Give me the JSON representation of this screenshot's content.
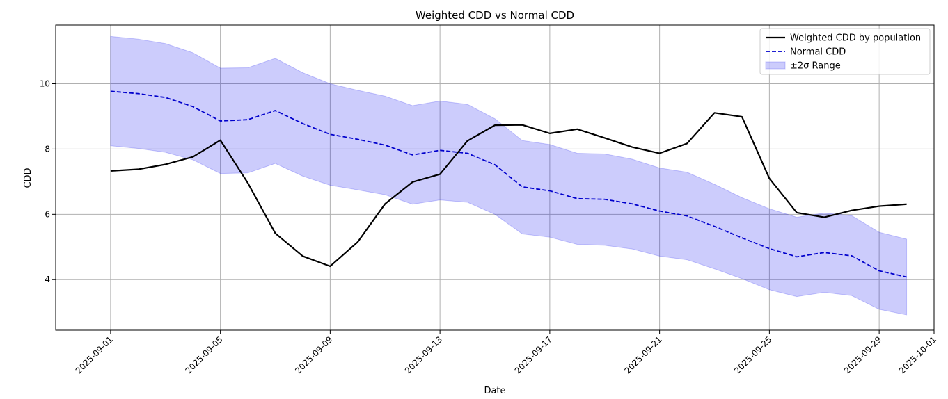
{
  "chart_data": {
    "type": "line",
    "title": "Weighted CDD vs Normal CDD",
    "xlabel": "Date",
    "ylabel": "CDD",
    "x": [
      "2025-09-01",
      "2025-09-02",
      "2025-09-03",
      "2025-09-04",
      "2025-09-05",
      "2025-09-06",
      "2025-09-07",
      "2025-09-08",
      "2025-09-09",
      "2025-09-10",
      "2025-09-11",
      "2025-09-12",
      "2025-09-13",
      "2025-09-14",
      "2025-09-15",
      "2025-09-16",
      "2025-09-17",
      "2025-09-18",
      "2025-09-19",
      "2025-09-20",
      "2025-09-21",
      "2025-09-22",
      "2025-09-23",
      "2025-09-24",
      "2025-09-25",
      "2025-09-26",
      "2025-09-27",
      "2025-09-28",
      "2025-09-29",
      "2025-09-30"
    ],
    "x_ticks": [
      "2025-09-01",
      "2025-09-05",
      "2025-09-09",
      "2025-09-13",
      "2025-09-17",
      "2025-09-21",
      "2025-09-25",
      "2025-09-29",
      "2025-10-01"
    ],
    "xlim": [
      "2025-08-30",
      "2025-10-01"
    ],
    "y_ticks": [
      4,
      6,
      8,
      10
    ],
    "ylim": [
      2.45,
      11.8
    ],
    "grid": true,
    "legend_position": "top-right",
    "series": [
      {
        "name": "Weighted CDD by population",
        "style": "solid",
        "color": "#000000",
        "values": [
          7.33,
          7.38,
          7.53,
          7.76,
          8.27,
          6.96,
          5.42,
          4.72,
          4.41,
          5.15,
          6.32,
          6.99,
          7.23,
          8.25,
          8.73,
          8.74,
          8.48,
          8.61,
          8.34,
          8.06,
          7.87,
          8.17,
          9.11,
          8.99,
          7.1,
          6.05,
          5.91,
          6.12,
          6.25,
          6.31
        ]
      },
      {
        "name": "Normal CDD",
        "style": "dashed",
        "color": "#0000cc",
        "values": [
          9.77,
          9.7,
          9.58,
          9.3,
          8.86,
          8.9,
          9.18,
          8.78,
          8.45,
          8.3,
          8.12,
          7.82,
          7.96,
          7.87,
          7.52,
          6.84,
          6.72,
          6.48,
          6.46,
          6.32,
          6.1,
          5.95,
          5.63,
          5.28,
          4.95,
          4.7,
          4.83,
          4.73,
          4.27,
          4.08
        ]
      }
    ],
    "band": {
      "name": "±2σ Range",
      "color": "#0000ee",
      "opacity": 0.2,
      "upper": [
        11.45,
        11.37,
        11.23,
        10.95,
        10.48,
        10.49,
        10.78,
        10.34,
        10.0,
        9.8,
        9.62,
        9.33,
        9.47,
        9.37,
        8.93,
        8.26,
        8.14,
        7.87,
        7.85,
        7.69,
        7.42,
        7.29,
        6.92,
        6.51,
        6.17,
        5.91,
        6.04,
        5.96,
        5.45,
        5.24
      ],
      "lower": [
        8.1,
        8.02,
        7.9,
        7.67,
        7.25,
        7.27,
        7.56,
        7.17,
        6.89,
        6.75,
        6.6,
        6.31,
        6.44,
        6.37,
        6.0,
        5.4,
        5.3,
        5.08,
        5.05,
        4.94,
        4.72,
        4.61,
        4.33,
        4.03,
        3.69,
        3.48,
        3.61,
        3.51,
        3.09,
        2.92
      ]
    }
  }
}
